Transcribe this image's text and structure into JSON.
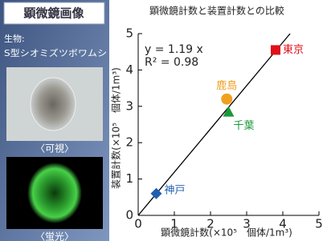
{
  "panel": {
    "title": "顕微鏡画像",
    "organism_label": "生物:",
    "organism": "S型シオミズツボワムシ",
    "caption_visible": "〈可視〉",
    "caption_fluorescent": "〈蛍光〉"
  },
  "chart_data": {
    "type": "scatter",
    "title": "顕微鏡計数と装置計数との比較",
    "x_label": "顕微鏡計数(×10⁵　個体/1m³)",
    "y_label": "装置計数(×10⁵　個体/1m³)",
    "xlim": [
      0,
      5
    ],
    "ylim": [
      0,
      5
    ],
    "xticks": [
      0,
      1,
      2,
      3,
      4,
      5
    ],
    "yticks": [
      0,
      1,
      2,
      3,
      4,
      5
    ],
    "fit_slope": 1.19,
    "fit_color": "#000000",
    "annotations": [
      "y = 1.19 x",
      "R² = 0.98"
    ],
    "series": [
      {
        "name": "東京",
        "color": "#e0101a",
        "marker": "square",
        "x": [
          3.8
        ],
        "values": [
          4.55
        ]
      },
      {
        "name": "鹿島",
        "color": "#f0a020",
        "marker": "circle",
        "x": [
          2.45
        ],
        "values": [
          3.2
        ]
      },
      {
        "name": "千葉",
        "color": "#1a9a3a",
        "marker": "triangle",
        "x": [
          2.5
        ],
        "values": [
          2.85
        ]
      },
      {
        "name": "神戸",
        "color": "#1f5fb0",
        "marker": "diamond",
        "x": [
          0.5
        ],
        "values": [
          0.6
        ]
      }
    ]
  }
}
